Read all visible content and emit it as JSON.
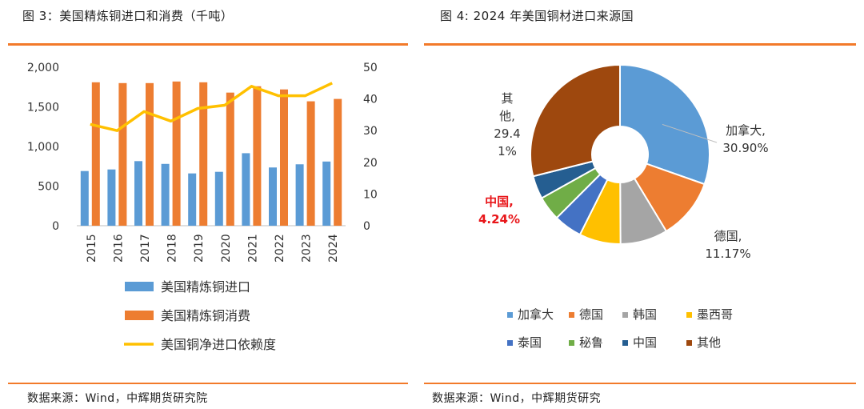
{
  "left_panel": {
    "figure_title": "图 3：美国精炼铜进口和消费（千吨）",
    "source": "数据来源：Wind，中辉期货研究院"
  },
  "right_panel": {
    "figure_title": "图 4:   2024 年美国铜材进口来源国",
    "source": "数据来源：Wind，中辉期货研究"
  },
  "chart_data": [
    {
      "type": "bar",
      "categories": [
        "2015",
        "2016",
        "2017",
        "2018",
        "2019",
        "2020",
        "2021",
        "2022",
        "2023",
        "2024"
      ],
      "series": [
        {
          "name": "美国精炼铜进口",
          "kind": "bar",
          "axis": "left",
          "color": "#5b9bd5",
          "values": [
            690,
            710,
            815,
            780,
            660,
            680,
            915,
            735,
            775,
            810
          ]
        },
        {
          "name": "美国精炼铜消费",
          "kind": "bar",
          "axis": "left",
          "color": "#ed7d31",
          "values": [
            1810,
            1800,
            1800,
            1820,
            1810,
            1680,
            1760,
            1720,
            1570,
            1600
          ]
        },
        {
          "name": "美国铜净进口依赖度",
          "kind": "line",
          "axis": "right",
          "color": "#ffc000",
          "values": [
            32,
            30,
            36,
            33,
            37,
            38,
            44,
            41,
            41,
            45
          ]
        }
      ],
      "y_left": {
        "range": [
          0,
          2000
        ],
        "ticks": [
          "0",
          "500",
          "1,000",
          "1,500",
          "2,000"
        ],
        "tick_values": [
          0,
          500,
          1000,
          1500,
          2000
        ]
      },
      "y_right": {
        "range": [
          0,
          50
        ],
        "ticks": [
          "0",
          "10",
          "20",
          "30",
          "40",
          "50"
        ],
        "tick_values": [
          0,
          10,
          20,
          30,
          40,
          50
        ]
      },
      "grid": false,
      "legend_position": "bottom"
    },
    {
      "type": "pie",
      "donut": true,
      "slices": [
        {
          "name": "加拿大",
          "value": 30.9,
          "color": "#5b9bd5",
          "label_lines": [
            "加拿大,",
            "30.90%"
          ],
          "label_color": "#333333",
          "label_bold": false
        },
        {
          "name": "德国",
          "value": 11.17,
          "color": "#ed7d31",
          "label_lines": [
            "德国,",
            "11.17%"
          ],
          "label_color": "#333333",
          "label_bold": false
        },
        {
          "name": "韩国",
          "value": 8.7,
          "color": "#a5a5a5",
          "label_lines": [],
          "label_color": "#333333",
          "label_bold": false
        },
        {
          "name": "墨西哥",
          "value": 7.6,
          "color": "#ffc000",
          "label_lines": [],
          "label_color": "#333333",
          "label_bold": false
        },
        {
          "name": "泰国",
          "value": 5.2,
          "color": "#4472c4",
          "label_lines": [],
          "label_color": "#333333",
          "label_bold": false
        },
        {
          "name": "秘鲁",
          "value": 4.5,
          "color": "#70ad47",
          "label_lines": [],
          "label_color": "#333333",
          "label_bold": false
        },
        {
          "name": "中国",
          "value": 4.24,
          "color": "#255e91",
          "label_lines": [
            "中国,",
            "4.24%"
          ],
          "label_color": "#e8161a",
          "label_bold": true
        },
        {
          "name": "其他",
          "value": 29.41,
          "color": "#9e480e",
          "label_lines": [
            "其",
            "他,",
            "29.4",
            "1%"
          ],
          "label_color": "#333333",
          "label_bold": false
        }
      ],
      "legend_position": "bottom"
    }
  ]
}
